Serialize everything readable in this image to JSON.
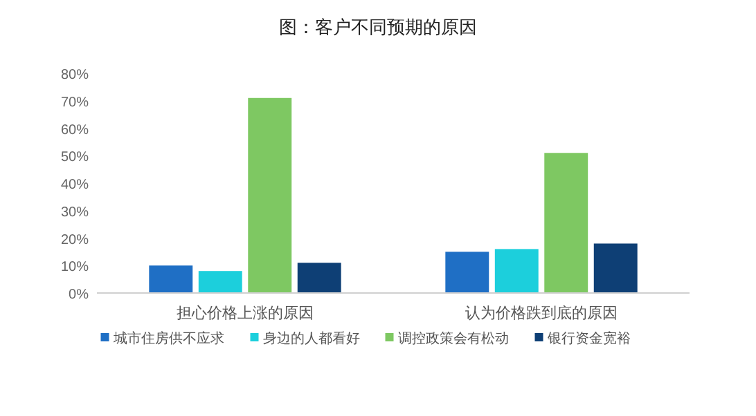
{
  "chart_data": {
    "type": "bar",
    "title": "图：客户不同预期的原因",
    "categories": [
      "担心价格上涨的原因",
      "认为价格跌到底的原因"
    ],
    "series": [
      {
        "name": "城市住房供不应求",
        "color": "#1f6fc5",
        "values": [
          10,
          15
        ]
      },
      {
        "name": "身边的人都看好",
        "color": "#1ccfdc",
        "values": [
          8,
          16
        ]
      },
      {
        "name": "调控政策会有松动",
        "color": "#7ec862",
        "values": [
          71,
          51
        ]
      },
      {
        "name": "银行资金宽裕",
        "color": "#0e3f75",
        "values": [
          11,
          18
        ]
      }
    ],
    "ylim": [
      0,
      80
    ],
    "yticks": [
      {
        "value": 0,
        "label": "0%"
      },
      {
        "value": 10,
        "label": "10%"
      },
      {
        "value": 20,
        "label": "20%"
      },
      {
        "value": 30,
        "label": "30%"
      },
      {
        "value": 40,
        "label": "40%"
      },
      {
        "value": 50,
        "label": "50%"
      },
      {
        "value": 60,
        "label": "60%"
      },
      {
        "value": 70,
        "label": "70%"
      },
      {
        "value": 80,
        "label": "80%"
      }
    ],
    "grid": false,
    "legend": "bottom"
  }
}
